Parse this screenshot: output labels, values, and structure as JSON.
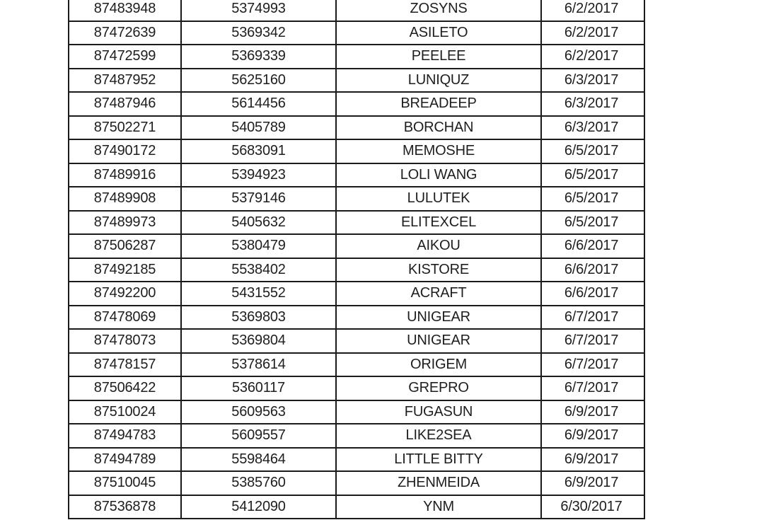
{
  "table": {
    "rows": [
      [
        "87483948",
        "5374993",
        "ZOSYNS",
        "6/2/2017"
      ],
      [
        "87472639",
        "5369342",
        "ASILETO",
        "6/2/2017"
      ],
      [
        "87472599",
        "5369339",
        "PEELEE",
        "6/2/2017"
      ],
      [
        "87487952",
        "5625160",
        "LUNIQUZ",
        "6/3/2017"
      ],
      [
        "87487946",
        "5614456",
        "BREADEEP",
        "6/3/2017"
      ],
      [
        "87502271",
        "5405789",
        "BORCHAN",
        "6/3/2017"
      ],
      [
        "87490172",
        "5683091",
        "MEMOSHE",
        "6/5/2017"
      ],
      [
        "87489916",
        "5394923",
        "LOLI WANG",
        "6/5/2017"
      ],
      [
        "87489908",
        "5379146",
        "LULUTEK",
        "6/5/2017"
      ],
      [
        "87489973",
        "5405632",
        "ELITEXCEL",
        "6/5/2017"
      ],
      [
        "87506287",
        "5380479",
        "AIKOU",
        "6/6/2017"
      ],
      [
        "87492185",
        "5538402",
        "KISTORE",
        "6/6/2017"
      ],
      [
        "87492200",
        "5431552",
        "ACRAFT",
        "6/6/2017"
      ],
      [
        "87478069",
        "5369803",
        "UNIGEAR",
        "6/7/2017"
      ],
      [
        "87478073",
        "5369804",
        "UNIGEAR",
        "6/7/2017"
      ],
      [
        "87478157",
        "5378614",
        "ORIGEM",
        "6/7/2017"
      ],
      [
        "87506422",
        "5360117",
        "GREPRO",
        "6/7/2017"
      ],
      [
        "87510024",
        "5609563",
        "FUGASUN",
        "6/9/2017"
      ],
      [
        "87494783",
        "5609557",
        "LIKE2SEA",
        "6/9/2017"
      ],
      [
        "87494789",
        "5598464",
        "LITTLE BITTY",
        "6/9/2017"
      ],
      [
        "87510045",
        "5385760",
        "ZHENMEIDA",
        "6/9/2017"
      ],
      [
        "87536878",
        "5412090",
        "YNM",
        "6/30/2017"
      ]
    ]
  }
}
